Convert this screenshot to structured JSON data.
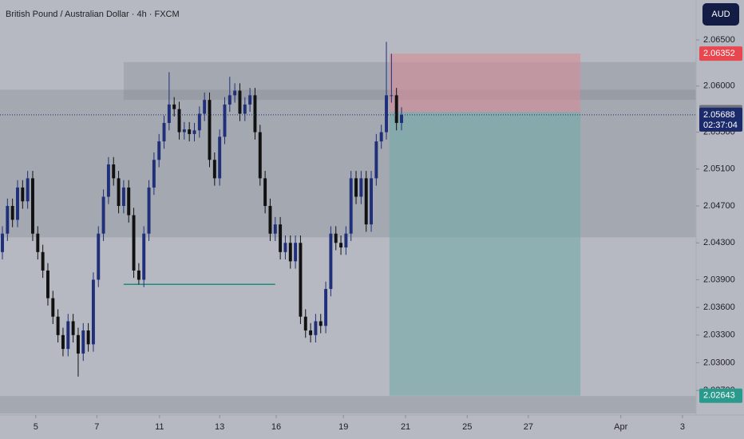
{
  "chart_data": {
    "type": "candlestick",
    "title": "British Pound / Australian Dollar · 4h · FXCM",
    "currency": "AUD",
    "countdown": "02:37:04",
    "up_color": "#1f2f7a",
    "down_color": "#111111",
    "xlim": [
      -0.474,
      137.3
    ],
    "ylim": [
      2.02433,
      2.06933
    ],
    "xticks": [
      {
        "value": 6.6,
        "label": "5"
      },
      {
        "value": 18.7,
        "label": "7"
      },
      {
        "value": 31.1,
        "label": "11"
      },
      {
        "value": 43,
        "label": "13"
      },
      {
        "value": 54.2,
        "label": "16"
      },
      {
        "value": 67.5,
        "label": "19"
      },
      {
        "value": 79.8,
        "label": "21"
      },
      {
        "value": 92,
        "label": "25"
      },
      {
        "value": 104.1,
        "label": "27"
      },
      {
        "value": 122.4,
        "label": "Apr"
      },
      {
        "value": 134.6,
        "label": "3"
      }
    ],
    "yticks": [
      {
        "value": 2.065,
        "label": "2.06500"
      },
      {
        "value": 2.06,
        "label": "2.06000"
      },
      {
        "value": 2.055,
        "label": "2.05500"
      },
      {
        "value": 2.051,
        "label": "2.05100"
      },
      {
        "value": 2.047,
        "label": "2.04700"
      },
      {
        "value": 2.043,
        "label": "2.04300"
      },
      {
        "value": 2.039,
        "label": "2.03900"
      },
      {
        "value": 2.036,
        "label": "2.03600"
      },
      {
        "value": 2.033,
        "label": "2.03300"
      },
      {
        "value": 2.03,
        "label": "2.03000"
      },
      {
        "value": 2.027,
        "label": "2.02700"
      }
    ],
    "open": [
      2.042,
      2.044,
      2.047,
      2.0455,
      2.049,
      2.0475,
      2.05,
      2.044,
      2.042,
      2.04,
      2.037,
      2.035,
      2.033,
      2.0315,
      2.0345,
      2.033,
      2.031,
      2.0335,
      2.032,
      2.039,
      2.044,
      2.048,
      2.0515,
      2.05,
      2.047,
      2.049,
      2.046,
      2.04,
      2.039,
      2.044,
      2.049,
      2.052,
      2.054,
      2.056,
      2.058,
      2.0575,
      2.055,
      2.0553,
      2.0548,
      2.0552,
      2.057,
      2.0585,
      2.052,
      2.05,
      2.0545,
      2.058,
      2.059,
      2.0595,
      2.057,
      2.058,
      2.059,
      2.055,
      2.05,
      2.047,
      2.044,
      2.045,
      2.042,
      2.043,
      2.041,
      2.043,
      2.035,
      2.0335,
      2.033,
      2.0345,
      2.034,
      2.038,
      2.044,
      2.043,
      2.0425,
      2.044,
      2.05,
      2.048,
      2.05,
      2.045,
      2.05,
      2.054,
      2.055,
      2.059,
      2.059,
      2.056
    ],
    "high": [
      2.0448,
      2.0478,
      2.0478,
      2.0498,
      2.0498,
      2.0508,
      2.0508,
      2.0448,
      2.0428,
      2.0408,
      2.0378,
      2.0358,
      2.0338,
      2.0353,
      2.0353,
      2.0338,
      2.0343,
      2.0343,
      2.0398,
      2.0448,
      2.0488,
      2.0523,
      2.0523,
      2.0508,
      2.0498,
      2.0498,
      2.0468,
      2.0408,
      2.0448,
      2.0498,
      2.0528,
      2.0548,
      2.0568,
      2.0615,
      2.0588,
      2.0583,
      2.0561,
      2.0561,
      2.056,
      2.0578,
      2.0593,
      2.0593,
      2.0528,
      2.0553,
      2.0588,
      2.061,
      2.0603,
      2.0603,
      2.0588,
      2.0598,
      2.0598,
      2.0558,
      2.0508,
      2.0478,
      2.0458,
      2.0458,
      2.0438,
      2.0438,
      2.0438,
      2.0438,
      2.0358,
      2.0343,
      2.0353,
      2.0353,
      2.0388,
      2.0448,
      2.0448,
      2.0438,
      2.0448,
      2.0508,
      2.0508,
      2.0508,
      2.0508,
      2.0508,
      2.0548,
      2.0558,
      2.0648,
      2.0635,
      2.0598,
      2.0577
    ],
    "low": [
      2.0412,
      2.0432,
      2.0447,
      2.0447,
      2.0467,
      2.0467,
      2.0432,
      2.0412,
      2.0392,
      2.0362,
      2.0342,
      2.0322,
      2.0307,
      2.0307,
      2.0322,
      2.0285,
      2.0302,
      2.0312,
      2.0312,
      2.0382,
      2.0432,
      2.0472,
      2.0492,
      2.0462,
      2.0462,
      2.0452,
      2.0392,
      2.0385,
      2.0382,
      2.0432,
      2.0482,
      2.0512,
      2.0532,
      2.0552,
      2.0567,
      2.0542,
      2.0542,
      2.054,
      2.054,
      2.0544,
      2.0562,
      2.0512,
      2.0492,
      2.0492,
      2.0537,
      2.0572,
      2.0582,
      2.0562,
      2.0562,
      2.0572,
      2.0542,
      2.0492,
      2.0462,
      2.0432,
      2.0432,
      2.0412,
      2.0412,
      2.0402,
      2.0402,
      2.0342,
      2.0327,
      2.0322,
      2.0322,
      2.0332,
      2.0332,
      2.0372,
      2.0422,
      2.0417,
      2.0417,
      2.0432,
      2.0472,
      2.0472,
      2.0442,
      2.0442,
      2.0492,
      2.0532,
      2.0542,
      2.0582,
      2.0552,
      2.0552
    ],
    "close": [
      2.044,
      2.047,
      2.0455,
      2.049,
      2.0475,
      2.05,
      2.044,
      2.042,
      2.04,
      2.037,
      2.035,
      2.033,
      2.0315,
      2.0345,
      2.033,
      2.031,
      2.0335,
      2.032,
      2.039,
      2.044,
      2.048,
      2.0515,
      2.05,
      2.047,
      2.049,
      2.046,
      2.04,
      2.039,
      2.044,
      2.049,
      2.052,
      2.054,
      2.056,
      2.058,
      2.0575,
      2.055,
      2.0553,
      2.0548,
      2.0552,
      2.057,
      2.0585,
      2.052,
      2.05,
      2.0545,
      2.058,
      2.059,
      2.0595,
      2.057,
      2.058,
      2.059,
      2.055,
      2.05,
      2.047,
      2.044,
      2.045,
      2.042,
      2.043,
      2.041,
      2.043,
      2.035,
      2.0335,
      2.033,
      2.0345,
      2.034,
      2.038,
      2.044,
      2.043,
      2.0425,
      2.044,
      2.05,
      2.048,
      2.05,
      2.045,
      2.05,
      2.054,
      2.055,
      2.059,
      2.059,
      2.056,
      2.05688
    ],
    "zones": [
      {
        "from": 24,
        "low": 2.0585,
        "high": 2.0626
      },
      {
        "low": 2.0436,
        "high": 2.0596
      },
      {
        "low": 2.0245,
        "high": 2.0264
      }
    ],
    "level": {
      "value": 2.0385,
      "from": 24,
      "to": 54,
      "color": "#1f8a80"
    },
    "position": {
      "start": 76.6,
      "end": 114.4,
      "entry": 2.05717,
      "stop": 2.06352,
      "target": 2.02643
    }
  }
}
